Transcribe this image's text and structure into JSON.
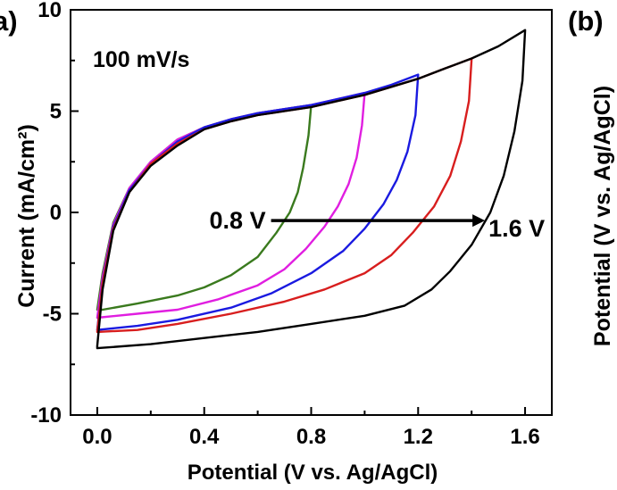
{
  "chart_data": {
    "type": "line",
    "panel_labels": [
      "a)",
      "(b)"
    ],
    "annotation": "100 mV/s",
    "xlabel": "Potential (V vs. Ag/AgCl)",
    "ylabel": "Current (mA/cm²)",
    "right_axis_label": "Potential (V vs. Ag/AgCl)",
    "xlim": [
      -0.1,
      1.7
    ],
    "ylim": [
      -10,
      10
    ],
    "xticks": [
      "0.0",
      "0.4",
      "0.8",
      "1.2",
      "1.6"
    ],
    "yticks": [
      "10",
      "5",
      "0",
      "-5",
      "-10"
    ],
    "arrow": {
      "from_label": "0.8 V",
      "to_label": "1.6 V",
      "from_x": 0.65,
      "to_x": 1.45,
      "y": -0.4
    },
    "series": [
      {
        "color": "#3a7a1e",
        "v_max": 0.8,
        "forward": [
          [
            0.0,
            -4.8
          ],
          [
            0.02,
            -3.0
          ],
          [
            0.06,
            -0.5
          ],
          [
            0.12,
            1.2
          ],
          [
            0.2,
            2.5
          ],
          [
            0.3,
            3.6
          ],
          [
            0.4,
            4.2
          ],
          [
            0.5,
            4.6
          ],
          [
            0.6,
            4.9
          ],
          [
            0.7,
            5.1
          ],
          [
            0.8,
            5.3
          ]
        ],
        "reverse": [
          [
            0.8,
            5.3
          ],
          [
            0.79,
            3.8
          ],
          [
            0.77,
            2.2
          ],
          [
            0.75,
            1.0
          ],
          [
            0.72,
            0.0
          ],
          [
            0.67,
            -1.0
          ],
          [
            0.6,
            -2.2
          ],
          [
            0.5,
            -3.1
          ],
          [
            0.4,
            -3.7
          ],
          [
            0.3,
            -4.1
          ],
          [
            0.15,
            -4.5
          ],
          [
            0.02,
            -4.8
          ],
          [
            0.0,
            -4.8
          ]
        ]
      },
      {
        "color": "#e01ee0",
        "v_max": 1.0,
        "forward": [
          [
            0.0,
            -5.2
          ],
          [
            0.02,
            -3.2
          ],
          [
            0.06,
            -0.6
          ],
          [
            0.12,
            1.2
          ],
          [
            0.2,
            2.5
          ],
          [
            0.3,
            3.6
          ],
          [
            0.4,
            4.2
          ],
          [
            0.5,
            4.6
          ],
          [
            0.6,
            4.9
          ],
          [
            0.7,
            5.1
          ],
          [
            0.8,
            5.3
          ],
          [
            0.9,
            5.6
          ],
          [
            1.0,
            5.9
          ]
        ],
        "reverse": [
          [
            1.0,
            5.9
          ],
          [
            0.99,
            4.3
          ],
          [
            0.97,
            2.7
          ],
          [
            0.94,
            1.4
          ],
          [
            0.9,
            0.3
          ],
          [
            0.85,
            -0.7
          ],
          [
            0.78,
            -1.8
          ],
          [
            0.7,
            -2.8
          ],
          [
            0.6,
            -3.6
          ],
          [
            0.45,
            -4.3
          ],
          [
            0.3,
            -4.8
          ],
          [
            0.15,
            -5.0
          ],
          [
            0.0,
            -5.2
          ]
        ]
      },
      {
        "color": "#1a1ae0",
        "v_max": 1.2,
        "forward": [
          [
            0.0,
            -5.8
          ],
          [
            0.02,
            -3.4
          ],
          [
            0.06,
            -0.7
          ],
          [
            0.12,
            1.1
          ],
          [
            0.2,
            2.4
          ],
          [
            0.3,
            3.5
          ],
          [
            0.4,
            4.2
          ],
          [
            0.5,
            4.6
          ],
          [
            0.6,
            4.9
          ],
          [
            0.7,
            5.1
          ],
          [
            0.8,
            5.3
          ],
          [
            0.9,
            5.6
          ],
          [
            1.0,
            5.9
          ],
          [
            1.1,
            6.3
          ],
          [
            1.2,
            6.8
          ]
        ],
        "reverse": [
          [
            1.2,
            6.8
          ],
          [
            1.19,
            4.8
          ],
          [
            1.16,
            3.0
          ],
          [
            1.12,
            1.6
          ],
          [
            1.07,
            0.4
          ],
          [
            1.0,
            -0.8
          ],
          [
            0.92,
            -1.9
          ],
          [
            0.8,
            -3.0
          ],
          [
            0.65,
            -4.0
          ],
          [
            0.5,
            -4.7
          ],
          [
            0.3,
            -5.3
          ],
          [
            0.15,
            -5.6
          ],
          [
            0.0,
            -5.8
          ]
        ]
      },
      {
        "color": "#d81e1e",
        "v_max": 1.4,
        "forward": [
          [
            0.0,
            -5.9
          ],
          [
            0.02,
            -3.5
          ],
          [
            0.06,
            -0.8
          ],
          [
            0.12,
            1.0
          ],
          [
            0.2,
            2.4
          ],
          [
            0.3,
            3.4
          ],
          [
            0.4,
            4.1
          ],
          [
            0.5,
            4.5
          ],
          [
            0.6,
            4.8
          ],
          [
            0.7,
            5.0
          ],
          [
            0.8,
            5.2
          ],
          [
            0.9,
            5.5
          ],
          [
            1.0,
            5.8
          ],
          [
            1.1,
            6.2
          ],
          [
            1.2,
            6.6
          ],
          [
            1.3,
            7.1
          ],
          [
            1.4,
            7.6
          ]
        ],
        "reverse": [
          [
            1.4,
            7.6
          ],
          [
            1.39,
            5.5
          ],
          [
            1.36,
            3.5
          ],
          [
            1.32,
            1.8
          ],
          [
            1.26,
            0.3
          ],
          [
            1.18,
            -1.0
          ],
          [
            1.1,
            -2.1
          ],
          [
            1.0,
            -3.0
          ],
          [
            0.85,
            -3.8
          ],
          [
            0.7,
            -4.4
          ],
          [
            0.5,
            -5.0
          ],
          [
            0.3,
            -5.5
          ],
          [
            0.15,
            -5.8
          ],
          [
            0.0,
            -5.9
          ]
        ]
      },
      {
        "color": "#000000",
        "v_max": 1.6,
        "forward": [
          [
            0.0,
            -6.6
          ],
          [
            0.02,
            -3.8
          ],
          [
            0.06,
            -0.9
          ],
          [
            0.12,
            1.0
          ],
          [
            0.2,
            2.3
          ],
          [
            0.3,
            3.3
          ],
          [
            0.4,
            4.1
          ],
          [
            0.5,
            4.5
          ],
          [
            0.6,
            4.8
          ],
          [
            0.7,
            5.0
          ],
          [
            0.8,
            5.2
          ],
          [
            0.9,
            5.5
          ],
          [
            1.0,
            5.8
          ],
          [
            1.1,
            6.2
          ],
          [
            1.2,
            6.6
          ],
          [
            1.3,
            7.1
          ],
          [
            1.4,
            7.6
          ],
          [
            1.5,
            8.2
          ],
          [
            1.6,
            9.0
          ]
        ],
        "reverse": [
          [
            1.6,
            9.0
          ],
          [
            1.59,
            6.5
          ],
          [
            1.56,
            4.0
          ],
          [
            1.52,
            1.8
          ],
          [
            1.47,
            0.0
          ],
          [
            1.4,
            -1.6
          ],
          [
            1.32,
            -2.9
          ],
          [
            1.25,
            -3.8
          ],
          [
            1.15,
            -4.6
          ],
          [
            1.0,
            -5.1
          ],
          [
            0.8,
            -5.5
          ],
          [
            0.6,
            -5.9
          ],
          [
            0.4,
            -6.2
          ],
          [
            0.2,
            -6.5
          ],
          [
            0.0,
            -6.7
          ]
        ]
      }
    ]
  }
}
